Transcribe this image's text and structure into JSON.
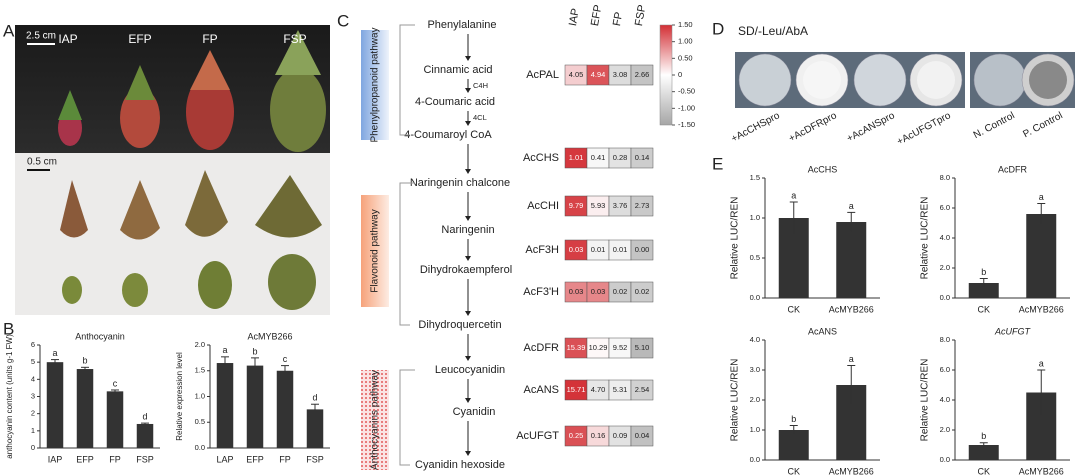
{
  "panel_a": {
    "label": "A",
    "scale_top": "2.5 cm",
    "scale_bottom": "0.5 cm",
    "samples": [
      "IAP",
      "EFP",
      "FP",
      "FSP"
    ]
  },
  "panel_b": {
    "label": "B",
    "charts": [
      {
        "type": "bar",
        "title": "Anthocyanin",
        "ylabel": "anthocyanin content (units g-1 FW)",
        "categories": [
          "IAP",
          "EFP",
          "FP",
          "FSP"
        ],
        "values": [
          5.0,
          4.6,
          3.3,
          1.4
        ],
        "errors": [
          0.15,
          0.1,
          0.08,
          0.05
        ],
        "letters": [
          "a",
          "b",
          "c",
          "d"
        ],
        "ylim": [
          0,
          6
        ],
        "yticks": [
          0,
          1,
          2,
          3,
          4,
          5,
          6
        ],
        "color": "#333333"
      },
      {
        "type": "bar",
        "title": "AcMYB266",
        "ylabel": "Relative expression level",
        "categories": [
          "LAP",
          "EFP",
          "FP",
          "FSP"
        ],
        "values": [
          1.65,
          1.6,
          1.5,
          0.75
        ],
        "errors": [
          0.12,
          0.15,
          0.1,
          0.1
        ],
        "letters": [
          "a",
          "b",
          "c",
          "d"
        ],
        "ylim": [
          0,
          2
        ],
        "yticks": [
          {
            "value": 0,
            "label": "0.0"
          },
          {
            "value": 0.5,
            "label": "0.5"
          },
          {
            "value": 1,
            "label": "1.0"
          },
          {
            "value": 1.5,
            "label": "1.5"
          },
          {
            "value": 2,
            "label": "2.0"
          }
        ],
        "color": "#333333"
      }
    ]
  },
  "panel_c": {
    "label": "C",
    "nodes": [
      "Phenylalanine",
      "Cinnamic acid",
      "4-Coumaric acid",
      "4-Coumaroyl CoA",
      "Naringenin chalcone",
      "Naringenin",
      "Dihydrokaempferol",
      "Dihydroquercetin",
      "Leucocyanidin",
      "Cyanidin",
      "Cyanidin hexoside"
    ],
    "enzymes": [
      "C4H",
      "4CL"
    ],
    "pathways": [
      "Phenylpropanoid pathway",
      "Flavonoid pathway",
      "Anthocyanins pathway"
    ],
    "columns": [
      "IAP",
      "EFP",
      "FP",
      "FSP"
    ],
    "rows": [
      {
        "gene": "AcPAL",
        "values": [
          4.05,
          4.94,
          3.08,
          2.66
        ]
      },
      {
        "gene": "AcCHS",
        "values": [
          1.01,
          0.41,
          0.28,
          0.14
        ]
      },
      {
        "gene": "AcCHI",
        "values": [
          9.79,
          5.93,
          3.76,
          2.73
        ]
      },
      {
        "gene": "AcF3H",
        "values": [
          0.03,
          0.01,
          0.01,
          0
        ],
        "value_labels": [
          "0.03",
          "0.01",
          "0.01",
          "0.00"
        ]
      },
      {
        "gene": "AcF3'H",
        "values": [
          0.03,
          0.03,
          0.02,
          0.02
        ]
      },
      {
        "gene": "AcDFR",
        "values": [
          15.39,
          10.29,
          9.52,
          5.1
        ],
        "value_labels": [
          "15.39",
          "10.29",
          "9.52",
          "5.10"
        ]
      },
      {
        "gene": "AcANS",
        "values": [
          15.71,
          4.7,
          5.31,
          2.54
        ],
        "value_labels": [
          "15.71",
          "4.70",
          "5.31",
          "2.54"
        ]
      },
      {
        "gene": "AcUFGT",
        "values": [
          0.25,
          0.16,
          0.09,
          0.04
        ]
      }
    ],
    "colorbar": {
      "lim": [
        -1.5,
        1.5
      ],
      "ticks": [
        {
          "value": 1.5,
          "label": "1.50"
        },
        {
          "value": 1,
          "label": "1.00"
        },
        {
          "value": 0.5,
          "label": "0.50"
        },
        0,
        {
          "value": -0.5,
          "label": "-0.50"
        },
        {
          "value": -1,
          "label": "-1.00"
        },
        {
          "value": -1.5,
          "label": "-1.50"
        }
      ],
      "high_color": "#d32f35",
      "low_color": "#a6a6a6"
    }
  },
  "panel_d": {
    "label": "D",
    "medium": "SD/-Leu/AbA",
    "plates": [
      "+AcCHSpro",
      "+AcDFRpro",
      "+AcANSpro",
      "+AcUFGTpro",
      "N. Control",
      "P. Control"
    ]
  },
  "panel_e": {
    "label": "E",
    "charts": [
      {
        "type": "bar",
        "title": "AcCHS",
        "ylabel": "Relative LUC/REN",
        "categories": [
          "CK",
          "AcMYB266"
        ],
        "values": [
          1.0,
          0.95
        ],
        "errors": [
          0.2,
          0.12
        ],
        "letters": [
          "a",
          "a"
        ],
        "ylim": [
          0,
          1.5
        ],
        "yticks": [
          {
            "value": 0,
            "label": "0.0"
          },
          {
            "value": 0.5,
            "label": "0.5"
          },
          {
            "value": 1,
            "label": "1.0"
          },
          {
            "value": 1.5,
            "label": "1.5"
          }
        ],
        "color": "#333333"
      },
      {
        "type": "bar",
        "title": "AcDFR",
        "ylabel": "Relative LUC/REN",
        "categories": [
          "CK",
          "AcMYB266"
        ],
        "values": [
          1.0,
          5.6
        ],
        "errors": [
          0.3,
          0.7
        ],
        "letters": [
          "b",
          "a"
        ],
        "ylim": [
          0,
          8
        ],
        "yticks": [
          {
            "value": 0,
            "label": "0.0"
          },
          {
            "value": 2,
            "label": "2.0"
          },
          {
            "value": 4,
            "label": "4.0"
          },
          {
            "value": 6,
            "label": "6.0"
          },
          {
            "value": 8,
            "label": "8.0"
          }
        ],
        "color": "#333333"
      },
      {
        "type": "bar",
        "title": "AcANS",
        "ylabel": "Relative LUC/REN",
        "categories": [
          "CK",
          "AcMYB266"
        ],
        "values": [
          1.0,
          2.5
        ],
        "errors": [
          0.15,
          0.65
        ],
        "letters": [
          "b",
          "a"
        ],
        "ylim": [
          0,
          4
        ],
        "yticks": [
          {
            "value": 0,
            "label": "0.0"
          },
          {
            "value": 1,
            "label": "1.0"
          },
          {
            "value": 2,
            "label": "2.0"
          },
          {
            "value": 3,
            "label": "3.0"
          },
          {
            "value": 4,
            "label": "4.0"
          }
        ],
        "color": "#333333"
      },
      {
        "type": "bar",
        "title": "AcUFGT",
        "title_style": "italic",
        "ylabel": "Relative LUC/REN",
        "categories": [
          "CK",
          "AcMYB266"
        ],
        "values": [
          1.0,
          4.5
        ],
        "errors": [
          0.15,
          1.5
        ],
        "letters": [
          "b",
          "a"
        ],
        "ylim": [
          0,
          8
        ],
        "yticks": [
          {
            "value": 0,
            "label": "0.0"
          },
          {
            "value": 2,
            "label": "2.0"
          },
          {
            "value": 4,
            "label": "4.0"
          },
          {
            "value": 6,
            "label": "6.0"
          },
          {
            "value": 8,
            "label": "8.0"
          }
        ],
        "color": "#333333"
      }
    ]
  }
}
